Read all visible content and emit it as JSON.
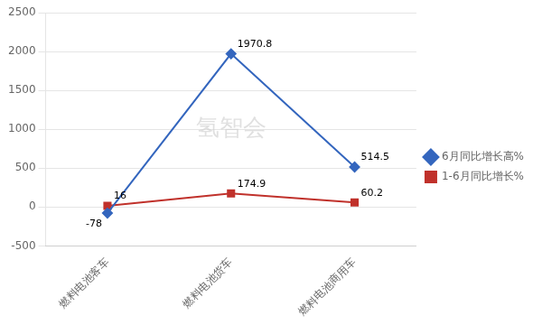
{
  "chart_data": {
    "type": "line",
    "categories": [
      "燃料电池客车",
      "燃料电池货车",
      "燃料电池商用车"
    ],
    "series": [
      {
        "name": "6月同比增长高%",
        "color": "#3466BE",
        "marker": "diamond",
        "values": [
          -78,
          1970.8,
          514.5
        ]
      },
      {
        "name": "1-6月同比增长%",
        "color": "#C0312B",
        "marker": "square",
        "values": [
          16,
          174.9,
          60.2
        ]
      }
    ],
    "ylim": [
      -500,
      2500
    ],
    "yticks": [
      -500,
      0,
      500,
      1000,
      1500,
      2000,
      2500
    ],
    "grid": true,
    "legend": "right",
    "data_labels": true,
    "annotations": [
      "氢智会"
    ]
  }
}
